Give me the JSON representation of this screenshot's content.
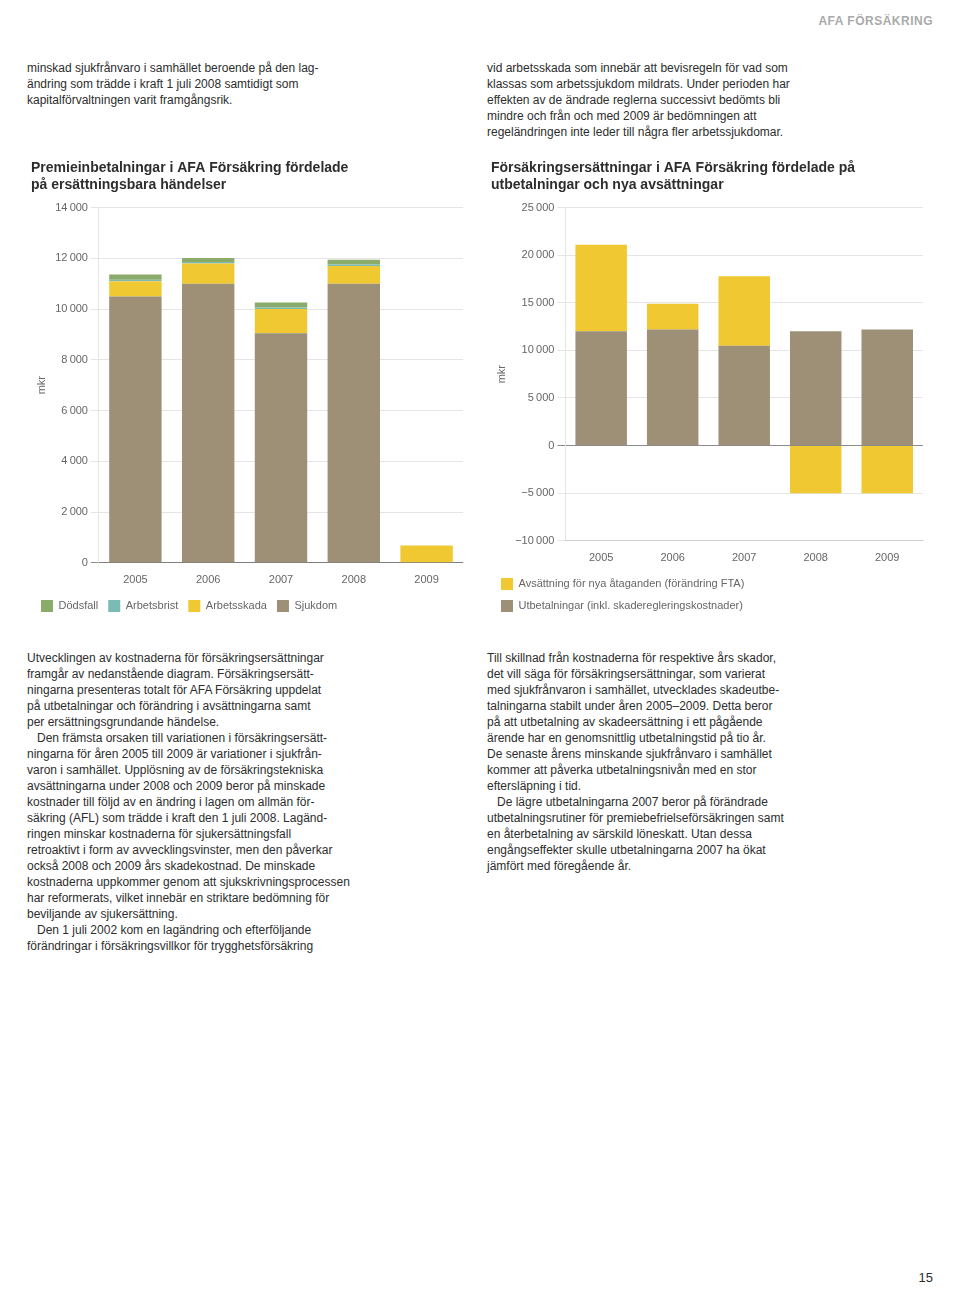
{
  "annotations": [
    "AFA FÖRSÄKRING",
    "15"
  ],
  "chart_data": [
    {
      "type": "bar",
      "title": [
        "Premieinbetalningar i AFA Försäkring fördelade",
        "på ersättningsbara händelser"
      ],
      "annotations": [
        "minskad sjukfrånvaro i samhället beroende på den lag-\nändring som trädde i kraft 1 juli 2008 samtidigt som\nkapitalförvaltningen varit framgångsrik.",
        "Utvecklingen av kostnaderna för försäkringsersättningar\nframgår av nedanstående diagram. Försäkringsersätt-\nningarna presenteras totalt för AFA Försäkring uppdelat\npå utbetalningar och förändring i avsättningarna samt\nper ersättningsgrundande händelse.\n   Den främsta orsaken till variationen i försäkringsersätt-\nningarna för åren 2005 till 2009 är variationer i sjukfrån-\nvaron i samhället. Upplösning av de försäkringstekniska\navsättningarna under 2008 och 2009 beror på minskade\nkostnader till följd av en ändring i lagen om allmän för-\nsäkring (AFL) som trädde i kraft den 1 juli 2008. Lagänd-\nringen minskar kostnaderna för sjukersättningsfall\nretroaktivt i form av avvecklingsvinster, men den påverkar\nockså 2008 och 2009 års skadekostnad. De minskade\nkostnaderna uppkommer genom att sjukskrivningsprocessen\nhar reformerats, vilket innebär en striktare bedömning för\nbeviljande av sjukersättning.\n   Den 1 juli 2002 kom en lagändring och efterföljande\nförändringar i försäkringsvillkor för trygghetsförsäkring"
      ],
      "categories": [
        "2005",
        "2006",
        "2007",
        "2008",
        "2009"
      ],
      "series": [
        {
          "name": "Sjukdom",
          "color": "#9d9077",
          "values": [
            10500,
            11000,
            9050,
            11000,
            0
          ]
        },
        {
          "name": "Arbetsskada",
          "color": "#f0c832",
          "values": [
            600,
            800,
            950,
            700,
            680
          ]
        },
        {
          "name": "Arbetsbrist",
          "color": "#7bbbb4",
          "values": [
            60,
            60,
            60,
            60,
            0
          ]
        },
        {
          "name": "Dödsfall",
          "color": "#8aab6a",
          "values": [
            200,
            150,
            200,
            180,
            0
          ]
        }
      ],
      "ylabel": "mkr",
      "ylim": [
        0,
        14000
      ],
      "yticks": [
        0,
        {
          "value": 2000,
          "label": "2 000"
        },
        {
          "value": 4000,
          "label": "4 000"
        },
        {
          "value": 6000,
          "label": "6 000"
        },
        {
          "value": 8000,
          "label": "8 000"
        },
        {
          "value": 10000,
          "label": "10 000"
        },
        {
          "value": 12000,
          "label": "12 000"
        },
        {
          "value": 14000,
          "label": "14 000"
        }
      ],
      "stacked": true,
      "grid": true,
      "legend": "bottom"
    },
    {
      "type": "bar",
      "title": [
        "Försäkringsersättningar i AFA Försäkring fördelade på",
        "utbetalningar och nya avsättningar"
      ],
      "annotations": [
        "vid arbetsskada som innebär att bevisregeln för vad som\nklassas som arbetssjukdom mildrats. Under perioden har\neffekten av de ändrade reglerna successivt bedömts bli\nmindre och från och med 2009 är bedömningen att\nregeländringen inte leder till några fler arbetssjukdomar.",
        "Till skillnad från kostnaderna för respektive års skador,\ndet vill säga för försäkringsersättningar, som varierat\nmed sjukfrånvaron i samhället, utvecklades skadeutbe-\ntalningarna stabilt under åren 2005–2009. Detta beror\npå att utbetalning av skadeersättning i ett pågående\närende har en genomsnittlig utbetalningstid på tio år.\nDe senaste årens minskande sjukfrånvaro i samhället\nkommer att påverka utbetalningsnivån med en stor\neftersläpning i tid.\n   De lägre utbetalningarna 2007 beror på förändrade\nutbetalningsrutiner för premiebefrielseförsäkringen samt\nen återbetalning av särskild löneskatt. Utan dessa\nengångseffekter skulle utbetalningarna 2007 ha ökat\njämfört med föregående år."
      ],
      "categories": [
        "2005",
        "2006",
        "2007",
        "2008",
        "2009"
      ],
      "series": [
        {
          "name": "Utbetalningar (inkl. skaderegleringskostnader)",
          "color": "#9d9077",
          "values": [
            12000,
            12200,
            10500,
            12000,
            12200
          ]
        },
        {
          "name": "Avsättning för nya åtaganden (förändring FTA)",
          "color": "#f0c832",
          "values": [
            9100,
            2700,
            7300,
            -5000,
            -5000
          ]
        }
      ],
      "ylabel": "mkr",
      "ylim": [
        -10000,
        25000
      ],
      "yticks": [
        {
          "value": -10000,
          "label": "−10 000"
        },
        {
          "value": -5000,
          "label": "−5 000"
        },
        0,
        {
          "value": 5000,
          "label": "5 000"
        },
        {
          "value": 10000,
          "label": "10 000"
        },
        {
          "value": 15000,
          "label": "15 000"
        },
        {
          "value": 20000,
          "label": "20 000"
        },
        {
          "value": 25000,
          "label": "25 000"
        }
      ],
      "stacked": true,
      "grid": true,
      "legend": "bottom"
    }
  ]
}
